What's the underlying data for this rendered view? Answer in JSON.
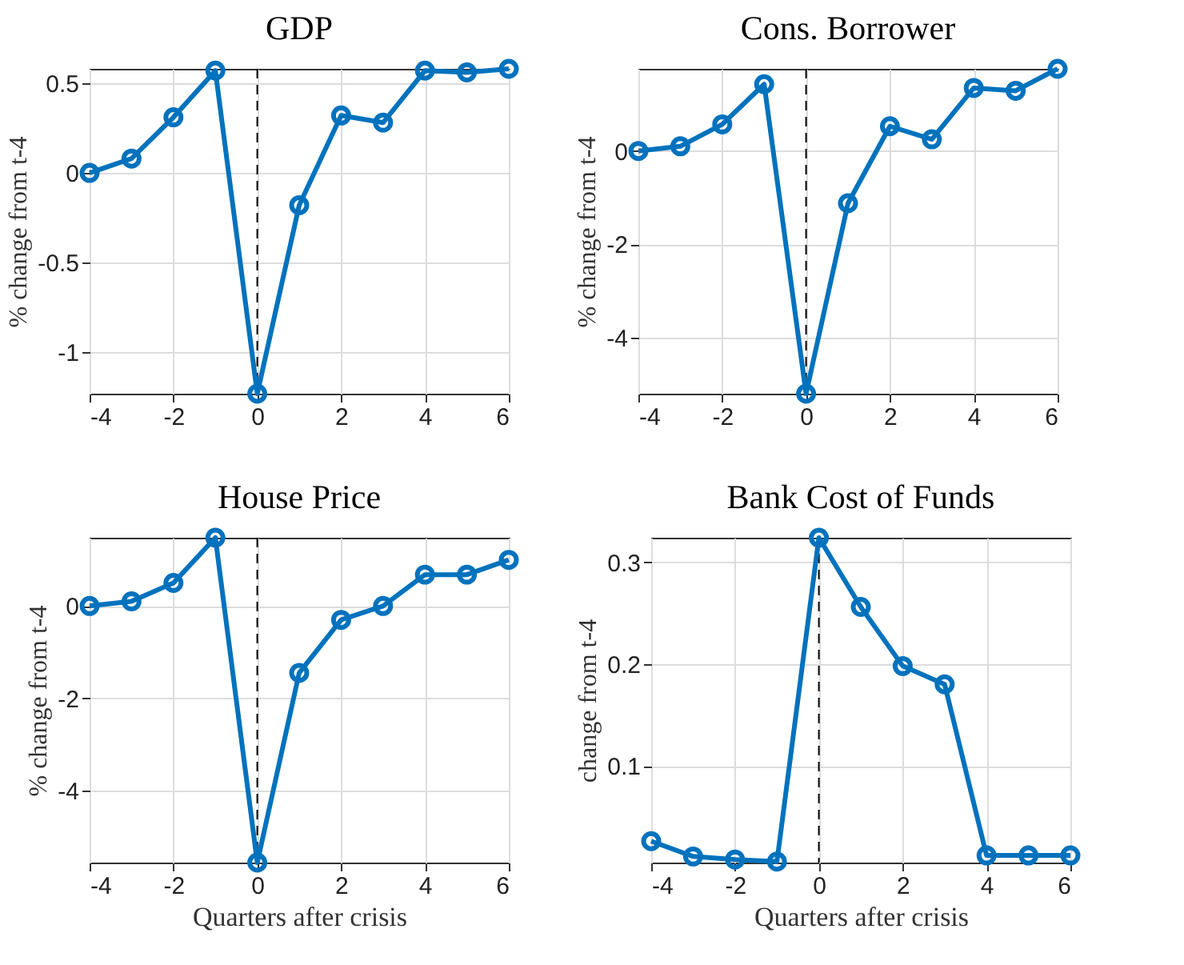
{
  "chart_data": [
    {
      "type": "line",
      "title": "GDP",
      "ylabel": "% change from t-4",
      "x": [
        -4,
        -3,
        -2,
        -1,
        0,
        1,
        2,
        3,
        4,
        5,
        6
      ],
      "series": [
        {
          "color": "#0072bd",
          "values": [
            0.0,
            0.08,
            0.31,
            0.57,
            -1.23,
            -0.18,
            0.32,
            0.28,
            0.57,
            0.56,
            0.58
          ]
        }
      ],
      "xlim": [
        -4,
        6
      ],
      "xticks": [
        -4,
        -2,
        0,
        2,
        4,
        6
      ],
      "ylim": [
        -1.23,
        0.58
      ],
      "yticks": [
        -1,
        -0.5,
        0,
        0.5
      ],
      "grid": true,
      "marker": "circle",
      "line_style": "solid",
      "ref_lines": [
        {
          "axis": "x",
          "value": 0,
          "color": "#000000",
          "line_style": "dashed"
        }
      ]
    },
    {
      "type": "line",
      "title": "Cons. Borrower",
      "ylabel": "% change from t-4",
      "x": [
        -4,
        -3,
        -2,
        -1,
        0,
        1,
        2,
        3,
        4,
        5,
        6
      ],
      "series": [
        {
          "color": "#0072bd",
          "values": [
            0.0,
            0.1,
            0.57,
            1.43,
            -5.2,
            -1.12,
            0.53,
            0.25,
            1.35,
            1.29,
            1.76
          ]
        }
      ],
      "xlim": [
        -4,
        6
      ],
      "xticks": [
        -4,
        -2,
        0,
        2,
        4,
        6
      ],
      "ylim": [
        -5.2,
        1.76
      ],
      "yticks": [
        -4,
        -2,
        0
      ],
      "grid": true,
      "marker": "circle",
      "line_style": "solid",
      "ref_lines": [
        {
          "axis": "x",
          "value": 0,
          "color": "#000000",
          "line_style": "dashed"
        }
      ]
    },
    {
      "type": "line",
      "title": "House Price",
      "xlabel": "Quarters after crisis",
      "ylabel": "% change from t-4",
      "x": [
        -4,
        -3,
        -2,
        -1,
        0,
        1,
        2,
        3,
        4,
        5,
        6
      ],
      "series": [
        {
          "color": "#0072bd",
          "values": [
            0.0,
            0.1,
            0.5,
            1.48,
            -5.56,
            -1.45,
            -0.3,
            0.0,
            0.68,
            0.68,
            1.0
          ]
        }
      ],
      "xlim": [
        -4,
        6
      ],
      "xticks": [
        -4,
        -2,
        0,
        2,
        4,
        6
      ],
      "ylim": [
        -5.56,
        1.48
      ],
      "yticks": [
        -4,
        -2,
        0
      ],
      "grid": true,
      "marker": "circle",
      "line_style": "solid",
      "ref_lines": [
        {
          "axis": "x",
          "value": 0,
          "color": "#000000",
          "line_style": "dashed"
        }
      ]
    },
    {
      "type": "line",
      "title": "Bank Cost of Funds",
      "xlabel": "Quarters after crisis",
      "ylabel": "change from t-4",
      "x": [
        -4,
        -3,
        -2,
        -1,
        0,
        1,
        2,
        3,
        4,
        5,
        6
      ],
      "series": [
        {
          "color": "#0072bd",
          "values": [
            0.026,
            0.011,
            0.008,
            0.006,
            0.324,
            0.256,
            0.198,
            0.18,
            0.012,
            0.012,
            0.012
          ]
        }
      ],
      "xlim": [
        -4,
        6
      ],
      "xticks": [
        -4,
        -2,
        0,
        2,
        4,
        6
      ],
      "ylim": [
        0.005,
        0.324
      ],
      "yticks": [
        0.1,
        0.2,
        0.3
      ],
      "grid": true,
      "marker": "circle",
      "line_style": "solid",
      "ref_lines": [
        {
          "axis": "x",
          "value": 0,
          "color": "#000000",
          "line_style": "dashed"
        }
      ]
    }
  ]
}
